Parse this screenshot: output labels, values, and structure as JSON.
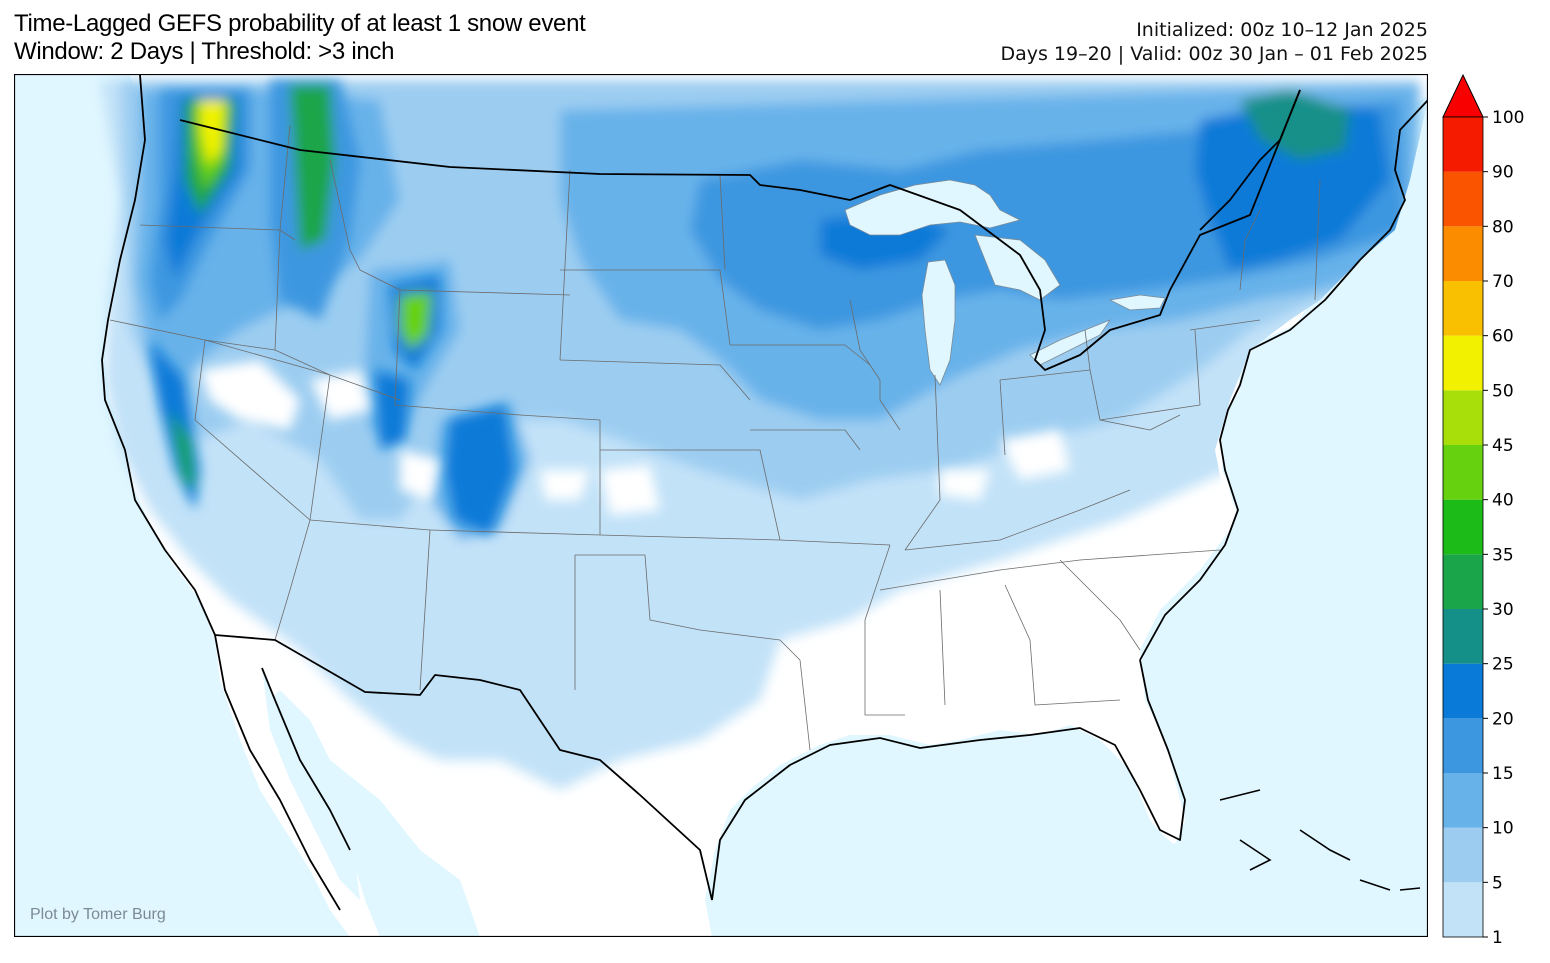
{
  "title": {
    "line1": "Time-Lagged GEFS probability of at least 1 snow event",
    "line2": "Window: 2 Days | Threshold: >3 inch"
  },
  "info": {
    "initialized": "Initialized: 00z 10–12 Jan 2025",
    "valid": "Days 19–20 | Valid: 00z 30 Jan – 01 Feb 2025"
  },
  "credit": "Plot by Tomer Burg",
  "colors": {
    "ocean": "#e0f7ff",
    "land": "#ffffff"
  },
  "colorbar": {
    "ticks": [
      "1",
      "5",
      "10",
      "15",
      "20",
      "25",
      "30",
      "35",
      "40",
      "45",
      "50",
      "60",
      "70",
      "80",
      "90",
      "100"
    ],
    "colors": [
      "#c2e2f8",
      "#9ccdf1",
      "#68b2ea",
      "#3c97e0",
      "#0a7ad8",
      "#149088",
      "#1aa54a",
      "#1dbb18",
      "#66d10e",
      "#a8df0a",
      "#f2f200",
      "#f8c000",
      "#fb8c00",
      "#fb5400",
      "#f41b00"
    ],
    "extend_color": "#f80000"
  }
}
